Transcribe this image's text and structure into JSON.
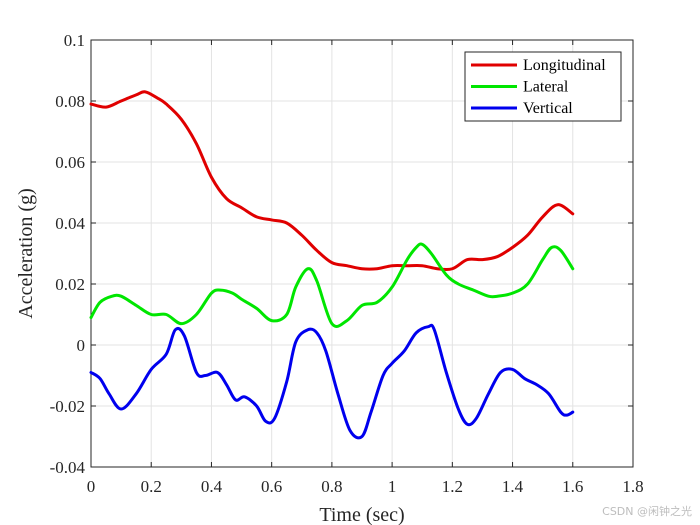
{
  "chart_data": {
    "type": "line",
    "xlabel": "Time (sec)",
    "ylabel": "Acceleration (g)",
    "xlim": [
      0,
      1.8
    ],
    "ylim": [
      -0.04,
      0.1
    ],
    "xticks": [
      0,
      0.2,
      0.4,
      0.6,
      0.8,
      1,
      1.2,
      1.4,
      1.6,
      1.8
    ],
    "xtick_labels": [
      "0",
      "0.2",
      "0.4",
      "0.6",
      "0.8",
      "1",
      "1.2",
      "1.4",
      "1.6",
      "1.8"
    ],
    "yticks": [
      -0.04,
      -0.02,
      0,
      0.02,
      0.04,
      0.06,
      0.08,
      0.1
    ],
    "ytick_labels": [
      "-0.04",
      "-0.02",
      "0",
      "0.02",
      "0.04",
      "0.06",
      "0.08",
      "0.1"
    ],
    "grid": true,
    "legend_position": "top-right",
    "series": [
      {
        "name": "Longitudinal",
        "color": "#e00000",
        "x": [
          0,
          0.05,
          0.1,
          0.15,
          0.18,
          0.22,
          0.25,
          0.3,
          0.35,
          0.4,
          0.45,
          0.5,
          0.55,
          0.6,
          0.65,
          0.7,
          0.75,
          0.8,
          0.85,
          0.9,
          0.95,
          1.0,
          1.05,
          1.1,
          1.15,
          1.2,
          1.25,
          1.3,
          1.35,
          1.4,
          1.45,
          1.5,
          1.55,
          1.6
        ],
        "y": [
          0.079,
          0.078,
          0.08,
          0.082,
          0.083,
          0.081,
          0.079,
          0.074,
          0.066,
          0.055,
          0.048,
          0.045,
          0.042,
          0.041,
          0.04,
          0.036,
          0.031,
          0.027,
          0.026,
          0.025,
          0.025,
          0.026,
          0.026,
          0.026,
          0.025,
          0.025,
          0.028,
          0.028,
          0.029,
          0.032,
          0.036,
          0.042,
          0.046,
          0.043
        ]
      },
      {
        "name": "Lateral",
        "color": "#00e600",
        "x": [
          0,
          0.03,
          0.07,
          0.1,
          0.15,
          0.2,
          0.25,
          0.3,
          0.35,
          0.4,
          0.43,
          0.47,
          0.5,
          0.55,
          0.6,
          0.65,
          0.68,
          0.72,
          0.75,
          0.8,
          0.85,
          0.9,
          0.95,
          1.0,
          1.05,
          1.08,
          1.1,
          1.13,
          1.18,
          1.22,
          1.27,
          1.32,
          1.35,
          1.4,
          1.45,
          1.5,
          1.53,
          1.56,
          1.6
        ],
        "y": [
          0.009,
          0.014,
          0.016,
          0.016,
          0.013,
          0.01,
          0.01,
          0.007,
          0.01,
          0.017,
          0.018,
          0.017,
          0.015,
          0.012,
          0.008,
          0.01,
          0.019,
          0.025,
          0.021,
          0.007,
          0.008,
          0.013,
          0.014,
          0.019,
          0.028,
          0.032,
          0.033,
          0.03,
          0.023,
          0.02,
          0.018,
          0.016,
          0.016,
          0.017,
          0.02,
          0.028,
          0.032,
          0.031,
          0.025
        ]
      },
      {
        "name": "Vertical",
        "color": "#0000ee",
        "x": [
          0,
          0.03,
          0.06,
          0.1,
          0.15,
          0.2,
          0.25,
          0.28,
          0.31,
          0.35,
          0.38,
          0.42,
          0.45,
          0.48,
          0.51,
          0.55,
          0.58,
          0.61,
          0.65,
          0.68,
          0.72,
          0.75,
          0.78,
          0.82,
          0.86,
          0.9,
          0.93,
          0.97,
          1.0,
          1.04,
          1.08,
          1.12,
          1.14,
          1.18,
          1.22,
          1.25,
          1.28,
          1.32,
          1.36,
          1.4,
          1.44,
          1.48,
          1.52,
          1.56,
          1.58,
          1.6
        ],
        "y": [
          -0.009,
          -0.011,
          -0.016,
          -0.021,
          -0.016,
          -0.008,
          -0.003,
          0.005,
          0.003,
          -0.009,
          -0.01,
          -0.009,
          -0.013,
          -0.018,
          -0.017,
          -0.02,
          -0.025,
          -0.024,
          -0.012,
          0.001,
          0.005,
          0.004,
          -0.002,
          -0.016,
          -0.028,
          -0.03,
          -0.022,
          -0.01,
          -0.006,
          -0.002,
          0.004,
          0.006,
          0.005,
          -0.009,
          -0.021,
          -0.026,
          -0.024,
          -0.016,
          -0.009,
          -0.008,
          -0.011,
          -0.013,
          -0.016,
          -0.022,
          -0.023,
          -0.022
        ]
      }
    ]
  },
  "watermark": "CSDN @闲钟之光"
}
